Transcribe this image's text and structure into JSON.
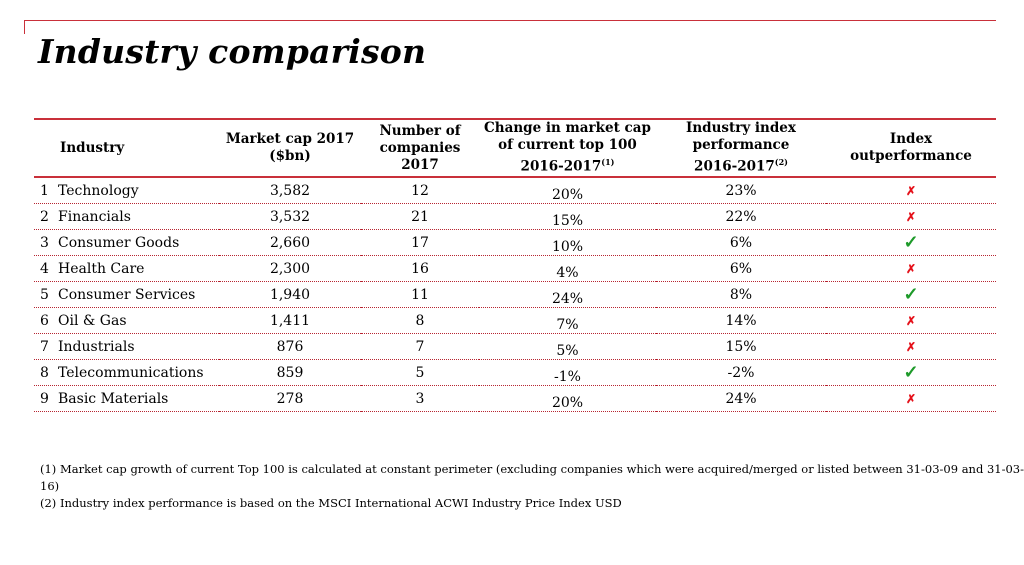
{
  "title": "Industry comparison",
  "headers": {
    "industry": "Industry",
    "market_cap_l1": "Market cap 2017",
    "market_cap_l2": "($bn)",
    "companies_l1": "Number of",
    "companies_l2": "companies 2017",
    "change_l1": "Change in market cap",
    "change_l2": "of current top 100",
    "change_l3": "2016-2017",
    "change_note": "(1)",
    "perf_l1": "Industry index",
    "perf_l2": "performance",
    "perf_l3": "2016-2017",
    "perf_note": "(2)",
    "out_l1": "Index",
    "out_l2": "outperformance"
  },
  "rows": [
    {
      "rank": "1",
      "industry": "Technology",
      "market_cap": "3,582",
      "companies": "12",
      "change": "20%",
      "performance": "23%",
      "outperformance": "✗"
    },
    {
      "rank": "2",
      "industry": "Financials",
      "market_cap": "3,532",
      "companies": "21",
      "change": "15%",
      "performance": "22%",
      "outperformance": "✗"
    },
    {
      "rank": "3",
      "industry": "Consumer Goods",
      "market_cap": "2,660",
      "companies": "17",
      "change": "10%",
      "performance": "6%",
      "outperformance": "✓"
    },
    {
      "rank": "4",
      "industry": "Health Care",
      "market_cap": "2,300",
      "companies": "16",
      "change": "4%",
      "performance": "6%",
      "outperformance": "✗"
    },
    {
      "rank": "5",
      "industry": "Consumer Services",
      "market_cap": "1,940",
      "companies": "11",
      "change": "24%",
      "performance": "8%",
      "outperformance": "✓"
    },
    {
      "rank": "6",
      "industry": "Oil & Gas",
      "market_cap": "1,411",
      "companies": "8",
      "change": "7%",
      "performance": "14%",
      "outperformance": "✗"
    },
    {
      "rank": "7",
      "industry": "Industrials",
      "market_cap": "876",
      "companies": "7",
      "change": "5%",
      "performance": "15%",
      "outperformance": "✗"
    },
    {
      "rank": "8",
      "industry": "Telecommunications",
      "market_cap": "859",
      "companies": "5",
      "change": "-1%",
      "performance": "-2%",
      "outperformance": "✓"
    },
    {
      "rank": "9",
      "industry": "Basic Materials",
      "market_cap": "278",
      "companies": "3",
      "change": "20%",
      "performance": "24%",
      "outperformance": "✗"
    }
  ],
  "footnotes": [
    "(1) Market cap growth of current Top 100 is calculated at constant perimeter (excluding companies which were acquired/merged or listed between 31-03-09 and 31-03-16)",
    "(2) Industry index performance is based on the MSCI International ACWI Industry Price Index USD"
  ],
  "colors": {
    "accent": "#c9303a",
    "cross": "#e5121b",
    "check": "#1e9a2a"
  }
}
